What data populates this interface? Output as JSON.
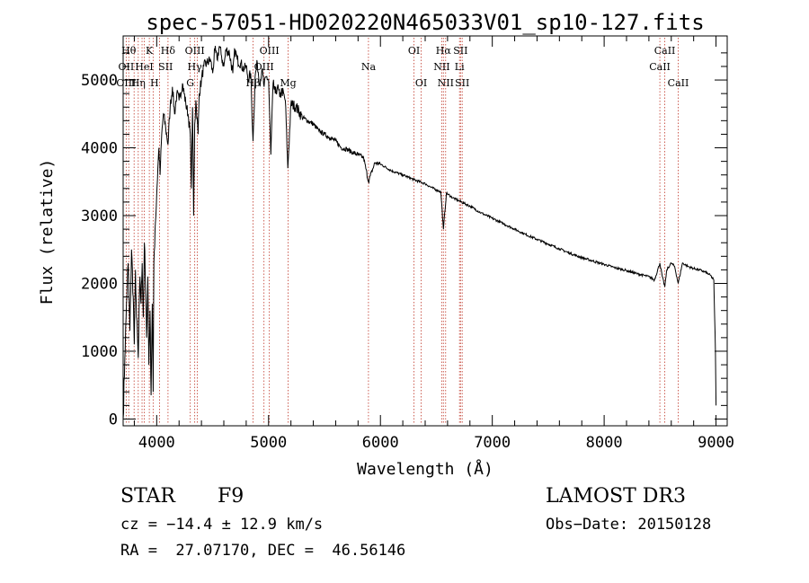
{
  "chart_data": {
    "type": "line",
    "title": "spec-57051-HD020220N465033V01_sp10-127.fits",
    "xlabel": "Wavelength (Å)",
    "ylabel": "Flux (relative)",
    "xlim": [
      3700,
      9100
    ],
    "ylim": [
      -100,
      5650
    ],
    "x_ticks": [
      4000,
      5000,
      6000,
      7000,
      8000,
      9000
    ],
    "x_tick_labels": [
      "4000",
      "5000",
      "6000",
      "7000",
      "8000",
      "9000"
    ],
    "y_ticks": [
      0,
      1000,
      2000,
      3000,
      4000,
      5000
    ],
    "y_tick_labels": [
      "0",
      "1000",
      "2000",
      "3000",
      "4000",
      "5000"
    ],
    "series": [
      {
        "name": "flux",
        "x": [
          3700,
          3715,
          3730,
          3745,
          3760,
          3775,
          3790,
          3800,
          3810,
          3820,
          3835,
          3850,
          3860,
          3870,
          3880,
          3890,
          3900,
          3910,
          3920,
          3930,
          3940,
          3950,
          3960,
          3968,
          3975,
          3985,
          4000,
          4010,
          4020,
          4030,
          4045,
          4060,
          4080,
          4101,
          4120,
          4140,
          4160,
          4180,
          4200,
          4230,
          4260,
          4280,
          4300,
          4310,
          4320,
          4330,
          4340,
          4350,
          4370,
          4380,
          4400,
          4420,
          4450,
          4480,
          4500,
          4520,
          4540,
          4560,
          4580,
          4600,
          4620,
          4650,
          4680,
          4700,
          4720,
          4750,
          4780,
          4800,
          4820,
          4840,
          4861,
          4880,
          4900,
          4920,
          4940,
          4960,
          4980,
          5000,
          5020,
          5040,
          5060,
          5080,
          5100,
          5120,
          5150,
          5172,
          5200,
          5250,
          5300,
          5350,
          5400,
          5450,
          5500,
          5550,
          5600,
          5650,
          5700,
          5750,
          5800,
          5850,
          5893,
          5950,
          6000,
          6100,
          6200,
          6300,
          6400,
          6450,
          6500,
          6540,
          6563,
          6590,
          6650,
          6700,
          6750,
          6800,
          6900,
          7000,
          7100,
          7200,
          7300,
          7400,
          7500,
          7600,
          7700,
          7800,
          7900,
          8000,
          8100,
          8200,
          8300,
          8400,
          8450,
          8498,
          8520,
          8542,
          8560,
          8600,
          8630,
          8662,
          8700,
          8750,
          8800,
          8850,
          8900,
          8950,
          8980,
          8995,
          9000
        ],
        "y": [
          0,
          900,
          1700,
          2300,
          1300,
          2500,
          1800,
          1100,
          2200,
          1500,
          900,
          2100,
          1700,
          2300,
          1500,
          2600,
          1900,
          1200,
          2100,
          800,
          1600,
          350,
          1700,
          400,
          2300,
          2800,
          3300,
          3700,
          4000,
          3600,
          4200,
          4500,
          4300,
          4050,
          4600,
          4900,
          4500,
          4800,
          4700,
          4950,
          4650,
          4500,
          4200,
          3400,
          4600,
          3000,
          4350,
          4700,
          4200,
          4800,
          5000,
          5200,
          5250,
          5300,
          5100,
          5450,
          5300,
          5500,
          5350,
          5200,
          5450,
          5400,
          5100,
          5450,
          5300,
          5250,
          5150,
          5200,
          5000,
          5100,
          4100,
          5050,
          5250,
          4950,
          5150,
          4900,
          5050,
          5000,
          3900,
          4950,
          4800,
          4900,
          4750,
          4850,
          4700,
          3700,
          4650,
          4600,
          4450,
          4400,
          4350,
          4250,
          4200,
          4150,
          4100,
          4000,
          3980,
          3930,
          3900,
          3850,
          3500,
          3780,
          3760,
          3660,
          3600,
          3530,
          3470,
          3420,
          3380,
          3350,
          2800,
          3330,
          3260,
          3220,
          3180,
          3140,
          3040,
          2960,
          2880,
          2800,
          2720,
          2650,
          2580,
          2510,
          2440,
          2380,
          2330,
          2280,
          2230,
          2190,
          2140,
          2100,
          2050,
          2300,
          2100,
          1950,
          2200,
          2300,
          2250,
          2000,
          2300,
          2250,
          2220,
          2200,
          2170,
          2120,
          2050,
          1000,
          200
        ]
      }
    ],
    "lines": [
      {
        "name": "H-delta",
        "wavelength": 4101
      },
      {
        "name": "H-gamma",
        "wavelength": 4340
      },
      {
        "name": "H-beta",
        "wavelength": 4861
      },
      {
        "name": "H-alpha",
        "wavelength": 6563
      }
    ]
  },
  "line_label_groups": {
    "row1": [
      "Hθ",
      "K",
      "Hδ",
      "OIII",
      "OIII",
      "OI",
      "Hα",
      "SII",
      "CaII"
    ],
    "row2": [
      "OII",
      "HeI",
      "SII",
      "Hγ",
      "OIII",
      "Na",
      "NII",
      "Li",
      "CaII"
    ],
    "row3": [
      "OIII",
      "Hη",
      "H",
      "G",
      "Hβ",
      "Mg",
      "OI",
      "NII",
      "SII",
      "CaII"
    ]
  },
  "info": {
    "object_class": "STAR",
    "subclass": "F9",
    "survey": "LAMOST DR3",
    "cz": "cz = −14.4 ± 12.9 km/s",
    "obs_date": "Obs−Date: 20150128",
    "coords": "RA =  27.07170, DEC =  46.56146"
  }
}
